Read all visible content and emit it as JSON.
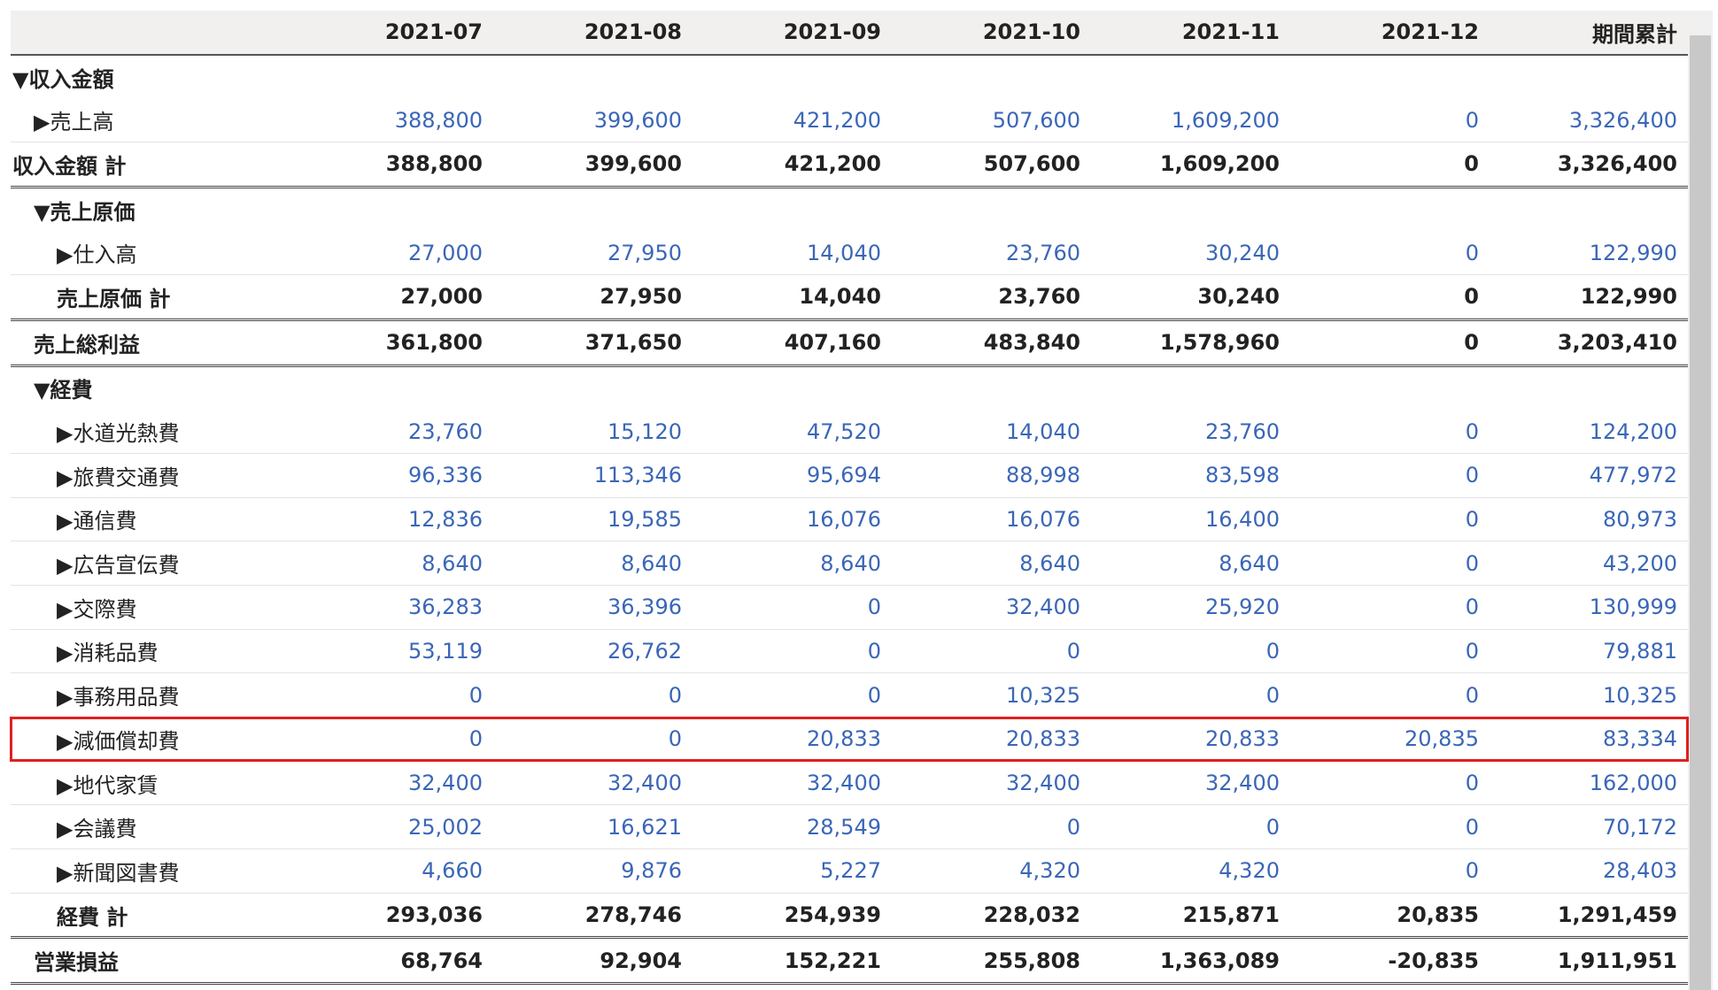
{
  "columns": [
    "",
    "2021-07",
    "2021-08",
    "2021-09",
    "2021-10",
    "2021-11",
    "2021-12",
    "期間累計"
  ],
  "rows": [
    {
      "kind": "section",
      "level": 0,
      "label": "▼収入金額",
      "values": []
    },
    {
      "kind": "detail",
      "level": 1,
      "label": "▶売上高",
      "values": [
        "388,800",
        "399,600",
        "421,200",
        "507,600",
        "1,609,200",
        "0",
        "3,326,400"
      ]
    },
    {
      "kind": "total",
      "level": 0,
      "label": "収入金額 計",
      "values": [
        "388,800",
        "399,600",
        "421,200",
        "507,600",
        "1,609,200",
        "0",
        "3,326,400"
      ]
    },
    {
      "kind": "section",
      "level": 1,
      "label": "▼売上原価",
      "values": []
    },
    {
      "kind": "detail",
      "level": 2,
      "label": "▶仕入高",
      "values": [
        "27,000",
        "27,950",
        "14,040",
        "23,760",
        "30,240",
        "0",
        "122,990"
      ]
    },
    {
      "kind": "total",
      "level": 2,
      "label": "売上原価 計",
      "values": [
        "27,000",
        "27,950",
        "14,040",
        "23,760",
        "30,240",
        "0",
        "122,990"
      ]
    },
    {
      "kind": "total",
      "level": 1,
      "label": "売上総利益",
      "values": [
        "361,800",
        "371,650",
        "407,160",
        "483,840",
        "1,578,960",
        "0",
        "3,203,410"
      ]
    },
    {
      "kind": "section",
      "level": 1,
      "label": "▼経費",
      "values": []
    },
    {
      "kind": "detail",
      "level": 2,
      "label": "▶水道光熱費",
      "values": [
        "23,760",
        "15,120",
        "47,520",
        "14,040",
        "23,760",
        "0",
        "124,200"
      ]
    },
    {
      "kind": "detail",
      "level": 2,
      "label": "▶旅費交通費",
      "values": [
        "96,336",
        "113,346",
        "95,694",
        "88,998",
        "83,598",
        "0",
        "477,972"
      ]
    },
    {
      "kind": "detail",
      "level": 2,
      "label": "▶通信費",
      "values": [
        "12,836",
        "19,585",
        "16,076",
        "16,076",
        "16,400",
        "0",
        "80,973"
      ]
    },
    {
      "kind": "detail",
      "level": 2,
      "label": "▶広告宣伝費",
      "values": [
        "8,640",
        "8,640",
        "8,640",
        "8,640",
        "8,640",
        "0",
        "43,200"
      ]
    },
    {
      "kind": "detail",
      "level": 2,
      "label": "▶交際費",
      "values": [
        "36,283",
        "36,396",
        "0",
        "32,400",
        "25,920",
        "0",
        "130,999"
      ]
    },
    {
      "kind": "detail",
      "level": 2,
      "label": "▶消耗品費",
      "values": [
        "53,119",
        "26,762",
        "0",
        "0",
        "0",
        "0",
        "79,881"
      ]
    },
    {
      "kind": "detail",
      "level": 2,
      "label": "▶事務用品費",
      "values": [
        "0",
        "0",
        "0",
        "10,325",
        "0",
        "0",
        "10,325"
      ]
    },
    {
      "kind": "detail",
      "level": 2,
      "label": "▶減価償却費",
      "values": [
        "0",
        "0",
        "20,833",
        "20,833",
        "20,833",
        "20,835",
        "83,334"
      ],
      "highlight": true
    },
    {
      "kind": "detail",
      "level": 2,
      "label": "▶地代家賃",
      "values": [
        "32,400",
        "32,400",
        "32,400",
        "32,400",
        "32,400",
        "0",
        "162,000"
      ]
    },
    {
      "kind": "detail",
      "level": 2,
      "label": "▶会議費",
      "values": [
        "25,002",
        "16,621",
        "28,549",
        "0",
        "0",
        "0",
        "70,172"
      ]
    },
    {
      "kind": "detail",
      "level": 2,
      "label": "▶新聞図書費",
      "values": [
        "4,660",
        "9,876",
        "5,227",
        "4,320",
        "4,320",
        "0",
        "28,403"
      ]
    },
    {
      "kind": "total",
      "level": 2,
      "label": "経費 計",
      "values": [
        "293,036",
        "278,746",
        "254,939",
        "228,032",
        "215,871",
        "20,835",
        "1,291,459"
      ]
    },
    {
      "kind": "total",
      "level": 1,
      "label": "営業損益",
      "values": [
        "68,764",
        "92,904",
        "152,221",
        "255,808",
        "1,363,089",
        "-20,835",
        "1,911,951"
      ]
    }
  ]
}
